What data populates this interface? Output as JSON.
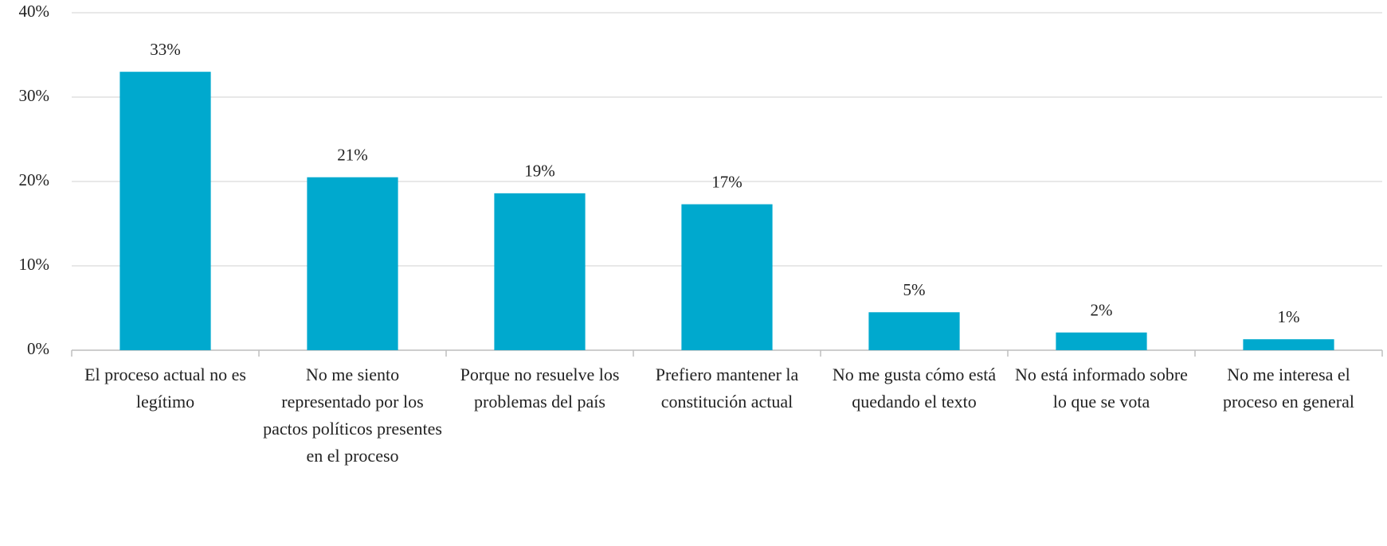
{
  "chart_data": {
    "type": "bar",
    "categories": [
      "El proceso actual no es legítimo",
      "No me siento representado por los pactos políticos presentes en el proceso",
      "Porque no resuelve los problemas del país",
      "Prefiero mantener la constitución actual",
      "No me gusta cómo está quedando el texto",
      "No está informado sobre lo que se vota",
      "No me interesa el proceso en general"
    ],
    "values": [
      33,
      20.5,
      18.6,
      17.3,
      4.5,
      2.1,
      1.3
    ],
    "value_labels": [
      "33%",
      "21%",
      "19%",
      "17%",
      "5%",
      "2%",
      "1%"
    ],
    "color": "#00a9ce",
    "ylim": [
      0,
      40
    ],
    "yticks": [
      {
        "value": 0,
        "label": "0%"
      },
      {
        "value": 10,
        "label": "10%"
      },
      {
        "value": 20,
        "label": "20%"
      },
      {
        "value": 30,
        "label": "30%"
      },
      {
        "value": 40,
        "label": "40%"
      }
    ],
    "grid": true
  }
}
